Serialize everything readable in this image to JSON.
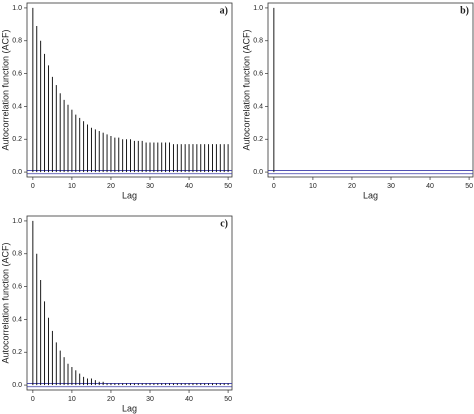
{
  "chart_data": [
    {
      "type": "bar",
      "panel_label": "a)",
      "xlabel": "Lag",
      "ylabel": "Autocorrelation function (ACF)",
      "color": "#000000",
      "x": [
        0,
        1,
        2,
        3,
        4,
        5,
        6,
        7,
        8,
        9,
        10,
        11,
        12,
        13,
        14,
        15,
        16,
        17,
        18,
        19,
        20,
        21,
        22,
        23,
        24,
        25,
        26,
        27,
        28,
        29,
        30,
        31,
        32,
        33,
        34,
        35,
        36,
        37,
        38,
        39,
        40,
        41,
        42,
        43,
        44,
        45,
        46,
        47,
        48,
        49,
        50
      ],
      "values": [
        1.0,
        0.89,
        0.8,
        0.72,
        0.65,
        0.58,
        0.53,
        0.48,
        0.44,
        0.41,
        0.38,
        0.35,
        0.33,
        0.31,
        0.29,
        0.27,
        0.26,
        0.25,
        0.24,
        0.23,
        0.22,
        0.21,
        0.21,
        0.2,
        0.2,
        0.2,
        0.19,
        0.19,
        0.19,
        0.18,
        0.18,
        0.18,
        0.18,
        0.18,
        0.18,
        0.18,
        0.17,
        0.17,
        0.17,
        0.17,
        0.17,
        0.17,
        0.17,
        0.17,
        0.17,
        0.17,
        0.17,
        0.17,
        0.17,
        0.17,
        0.17
      ],
      "xlim": [
        -1.5,
        51
      ],
      "ylim": [
        -0.03,
        1.03
      ],
      "xticks": [
        0,
        10,
        20,
        30,
        40,
        50
      ],
      "yticks": [
        {
          "value": 0,
          "label": "0.0"
        },
        0.2,
        0.4,
        0.6,
        0.8,
        {
          "value": 1,
          "label": "1.0"
        }
      ],
      "band": [
        -0.01,
        0.01
      ],
      "band_color": "#3a3aa8"
    },
    {
      "type": "bar",
      "panel_label": "b)",
      "xlabel": "Lag",
      "ylabel": "Autocorrelation function (ACF)",
      "color": "#000000",
      "x": [
        0,
        1,
        2,
        3,
        4,
        5,
        6,
        7,
        8,
        9,
        10,
        11,
        12,
        13,
        14,
        15,
        16,
        17,
        18,
        19,
        20,
        21,
        22,
        23,
        24,
        25,
        26,
        27,
        28,
        29,
        30,
        31,
        32,
        33,
        34,
        35,
        36,
        37,
        38,
        39,
        40,
        41,
        42,
        43,
        44,
        45,
        46,
        47,
        48,
        49,
        50
      ],
      "values": [
        1.0,
        0,
        0,
        0,
        0,
        0,
        0,
        0,
        0,
        0,
        0,
        0,
        0,
        0,
        0,
        0,
        0,
        0,
        0,
        0,
        0,
        0,
        0,
        0,
        0,
        0,
        0,
        0,
        0,
        0,
        0,
        0,
        0,
        0,
        0,
        0,
        0,
        0,
        0,
        0,
        0,
        0,
        0,
        0,
        0,
        0,
        0,
        0,
        0,
        0,
        0
      ],
      "xlim": [
        -1.5,
        51
      ],
      "ylim": [
        -0.03,
        1.03
      ],
      "xticks": [
        0,
        10,
        20,
        30,
        40,
        50
      ],
      "yticks": [
        {
          "value": 0,
          "label": "0.0"
        },
        0.2,
        0.4,
        0.6,
        0.8,
        {
          "value": 1,
          "label": "1.0"
        }
      ],
      "band": [
        -0.01,
        0.01
      ],
      "band_color": "#3a3aa8"
    },
    {
      "type": "bar",
      "panel_label": "c)",
      "xlabel": "Lag",
      "ylabel": "Autocorrelation function (ACF)",
      "color": "#000000",
      "x": [
        0,
        1,
        2,
        3,
        4,
        5,
        6,
        7,
        8,
        9,
        10,
        11,
        12,
        13,
        14,
        15,
        16,
        17,
        18,
        19,
        20,
        21,
        22,
        23,
        24,
        25,
        26,
        27,
        28,
        29,
        30,
        31,
        32,
        33,
        34,
        35,
        36,
        37,
        38,
        39,
        40,
        41,
        42,
        43,
        44,
        45,
        46,
        47,
        48,
        49,
        50
      ],
      "values": [
        1.0,
        0.8,
        0.64,
        0.51,
        0.41,
        0.33,
        0.26,
        0.21,
        0.17,
        0.13,
        0.11,
        0.09,
        0.07,
        0.05,
        0.04,
        0.04,
        0.03,
        0.02,
        0.02,
        0.01,
        0.01,
        0.01,
        0.01,
        0.01,
        0.01,
        0.01,
        0.01,
        0.01,
        0.01,
        0.01,
        0.01,
        0.01,
        0.01,
        0.01,
        0.01,
        0.01,
        0.01,
        0.01,
        0.01,
        0.01,
        0.01,
        0.01,
        0.01,
        0.01,
        0.01,
        0.01,
        0.01,
        0.01,
        0.01,
        0.01,
        0.01
      ],
      "xlim": [
        -1.5,
        51
      ],
      "ylim": [
        -0.03,
        1.03
      ],
      "xticks": [
        0,
        10,
        20,
        30,
        40,
        50
      ],
      "yticks": [
        {
          "value": 0,
          "label": "0.0"
        },
        0.2,
        0.4,
        0.6,
        0.8,
        {
          "value": 1,
          "label": "1.0"
        }
      ],
      "band": [
        -0.01,
        0.01
      ],
      "band_color": "#3a3aa8"
    }
  ]
}
